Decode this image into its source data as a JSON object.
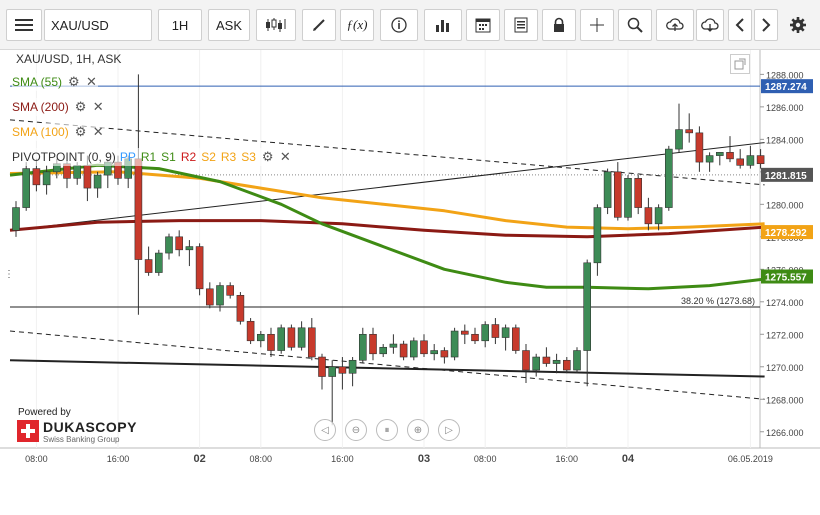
{
  "toolbar": {
    "instrument": "XAU/USD",
    "period": "1H",
    "side": "ASK",
    "icons": [
      "menu-icon",
      "candles-icon",
      "draw-icon",
      "fx-icon",
      "info-icon",
      "volume-icon",
      "calendar-icon",
      "report-icon",
      "lock-icon",
      "crosshair-icon",
      "zoom-icon",
      "upload-icon",
      "download-icon",
      "prev-icon",
      "next-icon",
      "settings-icon"
    ]
  },
  "chart_title": "XAU/USD, 1H, ASK",
  "indicators": [
    {
      "name": "SMA (55)",
      "color": "#3e8b14"
    },
    {
      "name": "SMA (200)",
      "color": "#8b1a14"
    },
    {
      "name": "SMA (100)",
      "color": "#f2a316"
    }
  ],
  "pivot": {
    "name": "PIVOTPOINT (0, 9)",
    "levels": [
      {
        "label": "PP",
        "color": "#3399ff"
      },
      {
        "label": "R1",
        "color": "#3e8b14"
      },
      {
        "label": "S1",
        "color": "#3e8b14"
      },
      {
        "label": "R2",
        "color": "#cc1a1a"
      },
      {
        "label": "S2",
        "color": "#f2a316"
      },
      {
        "label": "R3",
        "color": "#f2a316"
      },
      {
        "label": "S3",
        "color": "#f2a316"
      }
    ]
  },
  "branding": {
    "powered_by": "Powered by",
    "name": "DUKASCOPY",
    "sub": "Swiss Banking Group"
  },
  "chart_data": {
    "type": "candlestick",
    "title": "XAU/USD, 1H, ASK",
    "ylim": [
      1265.0,
      1289.5
    ],
    "y_ticks": [
      1266,
      1268,
      1270,
      1272,
      1274,
      1276,
      1278,
      1280,
      1282,
      1284,
      1286,
      1288
    ],
    "y_tick_labels": [
      "1266.000",
      "1268.000",
      "1270.000",
      "1272.000",
      "1274.000",
      "1276.000",
      "1278.000",
      "1280.000",
      "1282.000",
      "1284.000",
      "1286.000",
      "1288.000"
    ],
    "x_labels": [
      {
        "label": "08:00",
        "bar": 2
      },
      {
        "label": "16:00",
        "bar": 10
      },
      {
        "label": "02",
        "bar": 18,
        "bold": true
      },
      {
        "label": "08:00",
        "bar": 24
      },
      {
        "label": "16:00",
        "bar": 32
      },
      {
        "label": "03",
        "bar": 40,
        "bold": true
      },
      {
        "label": "08:00",
        "bar": 46
      },
      {
        "label": "16:00",
        "bar": 54
      },
      {
        "label": "04",
        "bar": 60,
        "bold": true
      },
      {
        "label": "06.05.2019",
        "bar": 72
      }
    ],
    "candles": [
      [
        1278.4,
        1280.2,
        1278.0,
        1279.8
      ],
      [
        1279.8,
        1282.6,
        1279.6,
        1282.2
      ],
      [
        1282.2,
        1282.8,
        1280.8,
        1281.2
      ],
      [
        1281.2,
        1282.4,
        1280.6,
        1282.0
      ],
      [
        1282.0,
        1282.8,
        1281.6,
        1282.5
      ],
      [
        1282.5,
        1282.8,
        1281.0,
        1281.6
      ],
      [
        1281.6,
        1282.6,
        1281.2,
        1282.4
      ],
      [
        1282.4,
        1283.0,
        1280.2,
        1281.0
      ],
      [
        1281.0,
        1282.0,
        1280.4,
        1281.8
      ],
      [
        1281.8,
        1282.8,
        1281.0,
        1282.6
      ],
      [
        1282.6,
        1283.0,
        1281.2,
        1281.6
      ],
      [
        1281.6,
        1283.0,
        1281.0,
        1282.8
      ],
      [
        1282.8,
        1288.0,
        1273.2,
        1276.6
      ],
      [
        1276.6,
        1277.4,
        1275.6,
        1275.8
      ],
      [
        1275.8,
        1277.2,
        1275.6,
        1277.0
      ],
      [
        1277.0,
        1278.2,
        1276.6,
        1278.0
      ],
      [
        1278.0,
        1278.4,
        1276.8,
        1277.2
      ],
      [
        1277.2,
        1277.8,
        1276.2,
        1277.4
      ],
      [
        1277.4,
        1277.6,
        1274.4,
        1274.8
      ],
      [
        1274.8,
        1275.2,
        1273.6,
        1273.8
      ],
      [
        1273.8,
        1275.2,
        1273.4,
        1275.0
      ],
      [
        1275.0,
        1275.2,
        1274.2,
        1274.4
      ],
      [
        1274.4,
        1274.6,
        1272.6,
        1272.8
      ],
      [
        1272.8,
        1273.0,
        1271.4,
        1271.6
      ],
      [
        1271.6,
        1272.2,
        1271.2,
        1272.0
      ],
      [
        1272.0,
        1272.4,
        1270.6,
        1271.0
      ],
      [
        1271.0,
        1272.6,
        1270.8,
        1272.4
      ],
      [
        1272.4,
        1272.6,
        1271.0,
        1271.2
      ],
      [
        1271.2,
        1272.8,
        1271.0,
        1272.4
      ],
      [
        1272.4,
        1273.0,
        1270.4,
        1270.6
      ],
      [
        1270.6,
        1270.8,
        1268.6,
        1269.4
      ],
      [
        1269.4,
        1270.4,
        1266.4,
        1270.0
      ],
      [
        1270.0,
        1270.6,
        1268.6,
        1269.6
      ],
      [
        1269.6,
        1270.6,
        1268.8,
        1270.4
      ],
      [
        1270.4,
        1272.4,
        1270.2,
        1272.0
      ],
      [
        1272.0,
        1272.4,
        1270.4,
        1270.8
      ],
      [
        1270.8,
        1271.4,
        1270.6,
        1271.2
      ],
      [
        1271.2,
        1272.0,
        1270.8,
        1271.4
      ],
      [
        1271.4,
        1271.6,
        1270.4,
        1270.6
      ],
      [
        1270.6,
        1271.8,
        1270.4,
        1271.6
      ],
      [
        1271.6,
        1272.0,
        1270.6,
        1270.8
      ],
      [
        1270.8,
        1271.4,
        1270.4,
        1271.0
      ],
      [
        1271.0,
        1271.2,
        1270.2,
        1270.6
      ],
      [
        1270.6,
        1272.4,
        1270.4,
        1272.2
      ],
      [
        1272.2,
        1272.6,
        1271.4,
        1272.0
      ],
      [
        1272.0,
        1272.4,
        1271.4,
        1271.6
      ],
      [
        1271.6,
        1272.8,
        1271.2,
        1272.6
      ],
      [
        1272.6,
        1273.0,
        1271.4,
        1271.8
      ],
      [
        1271.8,
        1272.6,
        1271.0,
        1272.4
      ],
      [
        1272.4,
        1272.6,
        1270.8,
        1271.0
      ],
      [
        1271.0,
        1271.4,
        1269.0,
        1269.8
      ],
      [
        1269.8,
        1270.8,
        1269.4,
        1270.6
      ],
      [
        1270.6,
        1271.2,
        1270.0,
        1270.2
      ],
      [
        1270.2,
        1270.8,
        1269.6,
        1270.4
      ],
      [
        1270.4,
        1270.6,
        1269.6,
        1269.8
      ],
      [
        1269.8,
        1271.2,
        1269.6,
        1271.0
      ],
      [
        1271.0,
        1276.6,
        1268.8,
        1276.4
      ],
      [
        1276.4,
        1280.0,
        1275.6,
        1279.8
      ],
      [
        1279.8,
        1282.2,
        1279.4,
        1282.0
      ],
      [
        1282.0,
        1282.6,
        1279.0,
        1279.2
      ],
      [
        1279.2,
        1281.8,
        1279.0,
        1281.6
      ],
      [
        1281.6,
        1281.8,
        1279.4,
        1279.8
      ],
      [
        1279.8,
        1280.4,
        1278.4,
        1278.8
      ],
      [
        1278.8,
        1280.0,
        1278.4,
        1279.8
      ],
      [
        1279.8,
        1283.6,
        1279.6,
        1283.4
      ],
      [
        1283.4,
        1286.2,
        1283.2,
        1284.6
      ],
      [
        1284.6,
        1285.6,
        1283.8,
        1284.4
      ],
      [
        1284.4,
        1284.8,
        1282.0,
        1282.6
      ],
      [
        1282.6,
        1283.2,
        1282.0,
        1283.0
      ],
      [
        1283.0,
        1283.2,
        1282.4,
        1283.2
      ],
      [
        1283.2,
        1284.2,
        1282.6,
        1282.8
      ],
      [
        1282.8,
        1283.4,
        1282.2,
        1282.4
      ],
      [
        1282.4,
        1283.6,
        1282.2,
        1283.0
      ],
      [
        1283.0,
        1283.4,
        1282.2,
        1282.5
      ]
    ],
    "sma_55": [
      [
        0,
        1281.8
      ],
      [
        8,
        1282.4
      ],
      [
        14,
        1282.2
      ],
      [
        20,
        1281.4
      ],
      [
        26,
        1280.0
      ],
      [
        30,
        1278.8
      ],
      [
        36,
        1277.4
      ],
      [
        42,
        1276.0
      ],
      [
        48,
        1275.2
      ],
      [
        52,
        1274.9
      ],
      [
        56,
        1274.9
      ],
      [
        62,
        1274.8
      ],
      [
        68,
        1275.0
      ],
      [
        73,
        1275.4
      ]
    ],
    "sma_100": [
      [
        0,
        1281.9
      ],
      [
        10,
        1282.0
      ],
      [
        18,
        1281.6
      ],
      [
        24,
        1281.0
      ],
      [
        30,
        1280.4
      ],
      [
        36,
        1280.0
      ],
      [
        42,
        1279.6
      ],
      [
        48,
        1279.0
      ],
      [
        54,
        1278.6
      ],
      [
        60,
        1278.5
      ],
      [
        66,
        1278.6
      ],
      [
        73,
        1278.8
      ]
    ],
    "sma_200": [
      [
        0,
        1278.4
      ],
      [
        8,
        1278.9
      ],
      [
        16,
        1279.0
      ],
      [
        24,
        1279.0
      ],
      [
        32,
        1278.8
      ],
      [
        40,
        1278.4
      ],
      [
        48,
        1278.1
      ],
      [
        56,
        1278.0
      ],
      [
        64,
        1278.2
      ],
      [
        73,
        1278.6
      ]
    ],
    "trend_lines": [
      {
        "from": [
          0,
          1278.4
        ],
        "to": [
          73,
          1283.8
        ],
        "style": "solid"
      },
      {
        "from": [
          0,
          1285.2
        ],
        "to": [
          73,
          1281.2
        ],
        "style": "dashed"
      },
      {
        "from": [
          0,
          1272.2
        ],
        "to": [
          73,
          1268.0
        ],
        "style": "dashed"
      },
      {
        "from": [
          0,
          1270.4
        ],
        "to": [
          73,
          1269.4
        ],
        "style": "solid",
        "width": 2
      }
    ],
    "fib_level": {
      "value": 1273.68,
      "label": "38.20 % (1273.68)"
    },
    "price_tags": [
      {
        "value": 1287.274,
        "label": "1287.274",
        "bg": "#2f5fb2"
      },
      {
        "value": 1281.815,
        "label": "1281.815",
        "bg": "#555555"
      },
      {
        "value": 1278.292,
        "label": "1278.292",
        "bg": "#f2a316"
      },
      {
        "value": 1275.557,
        "label": "1275.557",
        "bg": "#3e8b14"
      }
    ],
    "horizontal_lines": [
      {
        "value": 1287.274,
        "color": "#2f5fb2"
      },
      {
        "value": 1281.815,
        "color": "#888888",
        "style": "dotted"
      }
    ]
  }
}
